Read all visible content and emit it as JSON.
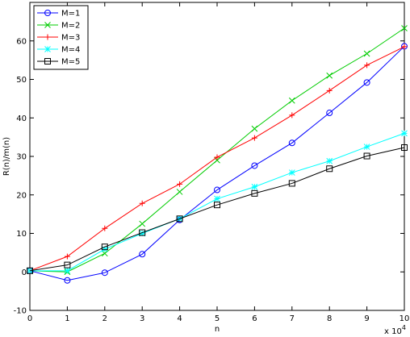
{
  "chart_data": {
    "type": "line",
    "title": "",
    "xlabel": "n",
    "ylabel": "R(n)/m(n)",
    "x_multiplier": "x 10",
    "x_multiplier_exp": "4",
    "xlim": [
      0,
      10
    ],
    "ylim": [
      -10,
      70
    ],
    "x_ticks": [
      "0",
      "1",
      "2",
      "3",
      "4",
      "5",
      "6",
      "7",
      "8",
      "9",
      "10"
    ],
    "y_ticks": [
      "-10",
      "0",
      "10",
      "20",
      "30",
      "40",
      "50",
      "60"
    ],
    "grid": false,
    "legend_position": "top-left",
    "x": [
      0,
      1,
      2,
      3,
      4,
      5,
      6,
      7,
      8,
      9,
      10
    ],
    "series": [
      {
        "name": "M=1",
        "color": "#0000ff",
        "marker": "circle",
        "values": [
          0.3,
          -2.2,
          -0.2,
          4.6,
          13.5,
          21.3,
          27.6,
          33.5,
          41.3,
          49.2,
          58.6
        ]
      },
      {
        "name": "M=2",
        "color": "#00cc00",
        "marker": "x",
        "values": [
          0.3,
          0.0,
          4.8,
          12.5,
          20.8,
          29.0,
          37.2,
          44.5,
          51.0,
          56.7,
          63.3
        ]
      },
      {
        "name": "M=3",
        "color": "#ff0000",
        "marker": "plus",
        "values": [
          0.3,
          4.0,
          11.3,
          17.8,
          22.8,
          29.8,
          34.8,
          40.7,
          47.1,
          53.7,
          58.5
        ]
      },
      {
        "name": "M=4",
        "color": "#00ffff",
        "marker": "star",
        "values": [
          0.3,
          0.3,
          5.9,
          10.0,
          13.8,
          19.0,
          22.1,
          25.8,
          28.8,
          32.5,
          36.0
        ]
      },
      {
        "name": "M=5",
        "color": "#000000",
        "marker": "square",
        "values": [
          0.3,
          1.8,
          6.5,
          10.2,
          13.8,
          17.4,
          20.4,
          23.0,
          26.8,
          30.1,
          32.3
        ]
      }
    ]
  }
}
